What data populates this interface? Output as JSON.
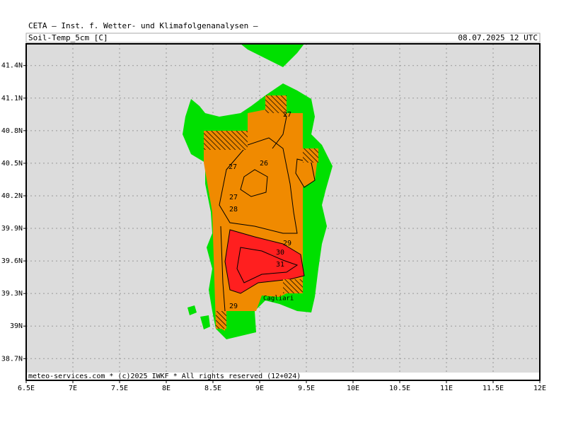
{
  "header": {
    "title": "CETA — Inst. f. Wetter- und Klimafolgenanalysen —",
    "parameter": "Soil-Temp_5cm [C]",
    "valid_time": "08.07.2025 12 UTC"
  },
  "footer": "meteo-services.com * (c)2025 IWKF * All rights reserved (12+024)",
  "map": {
    "lonlim": [
      6.5,
      12
    ],
    "latlim": [
      38.5,
      41.6
    ],
    "lat_ticks": [
      {
        "value": 41.4,
        "label": "41.4N"
      },
      {
        "value": 41.1,
        "label": "41.1N"
      },
      {
        "value": 40.8,
        "label": "40.8N"
      },
      {
        "value": 40.5,
        "label": "40.5N"
      },
      {
        "value": 40.2,
        "label": "40.2N"
      },
      {
        "value": 39.9,
        "label": "39.9N"
      },
      {
        "value": 39.6,
        "label": "39.6N"
      },
      {
        "value": 39.3,
        "label": "39.3N"
      },
      {
        "value": 39,
        "label": "39N"
      },
      {
        "value": 38.7,
        "label": "38.7N"
      }
    ],
    "lon_ticks": [
      {
        "value": 6.5,
        "label": "6.5E"
      },
      {
        "value": 7,
        "label": "7E"
      },
      {
        "value": 7.5,
        "label": "7.5E"
      },
      {
        "value": 8,
        "label": "8E"
      },
      {
        "value": 8.5,
        "label": "8.5E"
      },
      {
        "value": 9,
        "label": "9E"
      },
      {
        "value": 9.5,
        "label": "9.5E"
      },
      {
        "value": 10,
        "label": "10E"
      },
      {
        "value": 10.5,
        "label": "10.5E"
      },
      {
        "value": 11,
        "label": "11E"
      },
      {
        "value": 11.5,
        "label": "11.5E"
      },
      {
        "value": 12,
        "label": "12E"
      }
    ],
    "contour_labels": [
      "27",
      "26",
      "27",
      "27",
      "28",
      "29",
      "30",
      "31",
      "29"
    ],
    "city": "Cagliari"
  }
}
